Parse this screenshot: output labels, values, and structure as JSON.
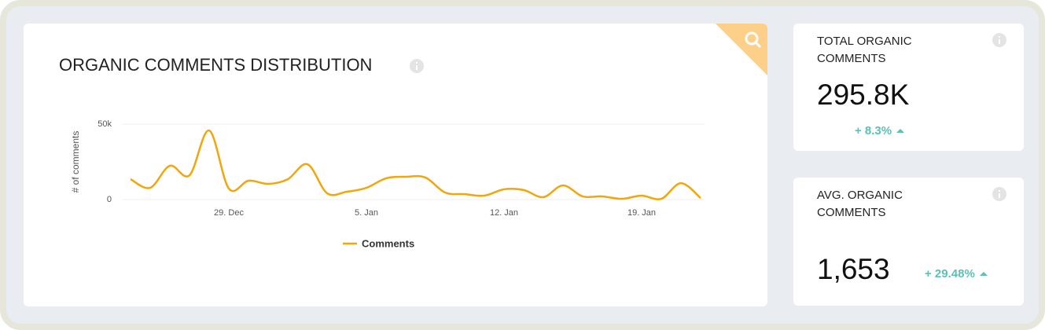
{
  "chart_data": {
    "type": "line",
    "title": "ORGANIC COMMENTS DISTRIBUTION",
    "y_label": "# of comments",
    "categories": [
      null,
      null,
      null,
      null,
      null,
      "29. Dec",
      null,
      null,
      null,
      null,
      null,
      null,
      "5. Jan",
      null,
      null,
      null,
      null,
      null,
      null,
      "12. Jan",
      null,
      null,
      null,
      null,
      null,
      null,
      "19. Jan",
      null,
      null,
      null
    ],
    "series": [
      {
        "name": "Comments",
        "color": "#f2a60c",
        "values": [
          13500,
          7800,
          22400,
          16100,
          45800,
          7300,
          12500,
          10400,
          13500,
          23400,
          4200,
          5200,
          7800,
          14100,
          15100,
          14600,
          4700,
          3600,
          2600,
          6800,
          6300,
          1600,
          9400,
          2100,
          2100,
          500,
          2600,
          500,
          10900,
          1000
        ]
      }
    ],
    "ylim": [
      0,
      50000
    ],
    "yticks": [
      0,
      {
        "value": 50000,
        "label": "50k"
      }
    ],
    "grid": true
  },
  "cards": [
    {
      "title": "TOTAL ORGANIC COMMENTS",
      "value": "295.8K",
      "change": "+ 8.3%"
    },
    {
      "title": "AVG. ORGANIC COMMENTS",
      "value": "1,653",
      "change": "+ 29.48%"
    }
  ]
}
